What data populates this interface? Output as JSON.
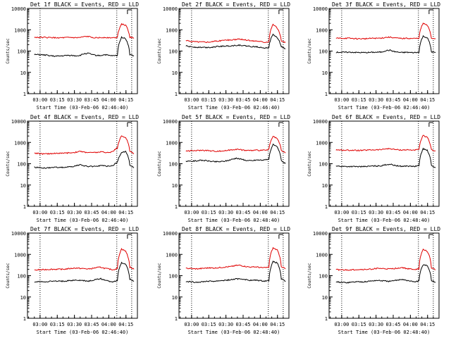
{
  "chart_data": [
    {
      "type": "line",
      "title": "Det 1f BLACK = Events, RED = LLD",
      "xlabel": "Start Time (03-Feb-06 02:46:40)",
      "ylabel": "Counts/sec",
      "yscale": "log",
      "ylim": [
        1,
        10000
      ],
      "x_ticks": [
        "03:00",
        "03:15",
        "03:30",
        "03:45",
        "04:00",
        "04:15"
      ],
      "y_ticks": [
        "1",
        "10",
        "100",
        "1000",
        "10000"
      ],
      "vlines": [
        "03:00",
        "04:07",
        "04:20"
      ],
      "series": [
        {
          "name": "Events",
          "color": "#000000",
          "values": [
            68,
            68,
            66,
            64,
            60,
            57,
            58,
            60,
            63,
            62,
            60,
            62,
            75,
            78,
            68,
            62,
            62,
            68,
            62,
            60,
            62,
            450,
            380,
            68,
            60
          ]
        },
        {
          "name": "LLD",
          "color": "#e00000",
          "values": [
            440,
            440,
            440,
            430,
            430,
            420,
            420,
            420,
            430,
            430,
            420,
            430,
            470,
            480,
            440,
            420,
            420,
            440,
            420,
            420,
            440,
            1900,
            1600,
            450,
            410
          ]
        }
      ]
    },
    {
      "type": "line",
      "title": "Det 2f BLACK = Events, RED = LLD",
      "xlabel": "Start Time (03-Feb-06 02:46:40)",
      "ylabel": "Counts/sec",
      "yscale": "log",
      "ylim": [
        1,
        10000
      ],
      "x_ticks": [
        "03:00",
        "03:15",
        "03:30",
        "03:45",
        "04:00",
        "04:15"
      ],
      "y_ticks": [
        "1",
        "10",
        "100",
        "1000",
        "10000"
      ],
      "vlines": [
        "03:00",
        "04:07",
        "04:20"
      ],
      "series": [
        {
          "name": "Events",
          "color": "#000000",
          "values": [
            175,
            160,
            155,
            150,
            150,
            148,
            150,
            158,
            165,
            170,
            172,
            175,
            185,
            190,
            178,
            170,
            160,
            160,
            150,
            140,
            150,
            600,
            420,
            160,
            130
          ]
        },
        {
          "name": "LLD",
          "color": "#e00000",
          "values": [
            310,
            290,
            280,
            270,
            270,
            265,
            270,
            290,
            300,
            320,
            330,
            330,
            350,
            360,
            340,
            320,
            300,
            300,
            280,
            260,
            280,
            1800,
            1200,
            300,
            250
          ]
        }
      ]
    },
    {
      "type": "line",
      "title": "Det 3f BLACK = Events, RED = LLD",
      "xlabel": "Start Time (03-Feb-06 02:46:40)",
      "ylabel": "Counts/sec",
      "yscale": "log",
      "ylim": [
        1,
        10000
      ],
      "x_ticks": [
        "03:00",
        "03:15",
        "03:30",
        "03:45",
        "04:00",
        "04:15"
      ],
      "y_ticks": [
        "1",
        "10",
        "100",
        "1000",
        "10000"
      ],
      "vlines": [
        "03:00",
        "04:07",
        "04:20"
      ],
      "series": [
        {
          "name": "Events",
          "color": "#000000",
          "values": [
            88,
            88,
            88,
            88,
            88,
            86,
            85,
            85,
            86,
            88,
            88,
            90,
            105,
            110,
            95,
            88,
            85,
            88,
            85,
            85,
            88,
            500,
            420,
            92,
            85
          ]
        },
        {
          "name": "LLD",
          "color": "#e00000",
          "values": [
            400,
            400,
            400,
            400,
            390,
            380,
            380,
            380,
            390,
            400,
            400,
            410,
            440,
            450,
            420,
            400,
            390,
            400,
            390,
            390,
            400,
            2000,
            1600,
            400,
            380
          ]
        }
      ]
    },
    {
      "type": "line",
      "title": "Det 4f BLACK = Events, RED = LLD",
      "xlabel": "Start Time (03-Feb-06 02:46:40)",
      "ylabel": "Counts/sec",
      "yscale": "log",
      "ylim": [
        1,
        10000
      ],
      "x_ticks": [
        "03:00",
        "03:15",
        "03:30",
        "03:45",
        "04:00",
        "04:15"
      ],
      "y_ticks": [
        "1",
        "10",
        "100",
        "1000",
        "10000"
      ],
      "vlines": [
        "03:00",
        "04:07",
        "04:20"
      ],
      "series": [
        {
          "name": "Events",
          "color": "#000000",
          "values": [
            70,
            65,
            63,
            63,
            65,
            68,
            68,
            68,
            70,
            72,
            80,
            88,
            80,
            75,
            75,
            78,
            82,
            78,
            75,
            85,
            120,
            320,
            380,
            85,
            65
          ]
        },
        {
          "name": "LLD",
          "color": "#e00000",
          "values": [
            320,
            300,
            290,
            290,
            300,
            310,
            310,
            310,
            320,
            330,
            350,
            380,
            350,
            340,
            330,
            340,
            360,
            340,
            330,
            400,
            550,
            2000,
            1700,
            380,
            300
          ]
        }
      ]
    },
    {
      "type": "line",
      "title": "Det 5f BLACK = Events, RED = LLD",
      "xlabel": "Start Time (03-Feb-06 02:48:40)",
      "ylabel": "Counts/sec",
      "yscale": "log",
      "ylim": [
        1,
        10000
      ],
      "x_ticks": [
        "03:00",
        "03:15",
        "03:30",
        "03:45",
        "04:00",
        "04:15"
      ],
      "y_ticks": [
        "1",
        "10",
        "100",
        "1000",
        "10000"
      ],
      "vlines": [
        "03:00",
        "04:07",
        "04:20"
      ],
      "series": [
        {
          "name": "Events",
          "color": "#000000",
          "values": [
            130,
            130,
            135,
            140,
            145,
            140,
            130,
            125,
            125,
            130,
            140,
            160,
            180,
            170,
            150,
            140,
            140,
            150,
            150,
            150,
            160,
            800,
            600,
            140,
            100
          ]
        },
        {
          "name": "LLD",
          "color": "#e00000",
          "values": [
            400,
            400,
            410,
            420,
            430,
            420,
            400,
            390,
            390,
            400,
            420,
            450,
            480,
            460,
            430,
            420,
            420,
            430,
            430,
            430,
            460,
            1900,
            1500,
            410,
            320
          ]
        }
      ]
    },
    {
      "type": "line",
      "title": "Det 6f BLACK = Events, RED = LLD",
      "xlabel": "Start Time (03-Feb-06 02:48:40)",
      "ylabel": "Counts/sec",
      "yscale": "log",
      "ylim": [
        1,
        10000
      ],
      "x_ticks": [
        "03:00",
        "03:15",
        "03:30",
        "03:45",
        "04:00",
        "04:15"
      ],
      "y_ticks": [
        "1",
        "10",
        "100",
        "1000",
        "10000"
      ],
      "vlines": [
        "03:00",
        "04:07",
        "04:20"
      ],
      "series": [
        {
          "name": "Events",
          "color": "#000000",
          "values": [
            78,
            76,
            75,
            74,
            74,
            73,
            73,
            74,
            76,
            78,
            78,
            80,
            90,
            95,
            85,
            78,
            76,
            78,
            76,
            75,
            80,
            500,
            420,
            80,
            65
          ]
        },
        {
          "name": "LLD",
          "color": "#e00000",
          "values": [
            450,
            440,
            430,
            430,
            430,
            420,
            420,
            430,
            440,
            450,
            450,
            460,
            500,
            510,
            470,
            450,
            440,
            450,
            440,
            440,
            460,
            2100,
            1700,
            450,
            400
          ]
        }
      ]
    },
    {
      "type": "line",
      "title": "Det 7f BLACK = Events, RED = LLD",
      "xlabel": "Start Time (03-Feb-06 02:46:40)",
      "ylabel": "Counts/sec",
      "yscale": "log",
      "ylim": [
        1,
        10000
      ],
      "x_ticks": [
        "03:00",
        "03:15",
        "03:30",
        "03:45",
        "04:00",
        "04:15"
      ],
      "y_ticks": [
        "1",
        "10",
        "100",
        "1000",
        "10000"
      ],
      "vlines": [
        "03:00",
        "04:07",
        "04:20"
      ],
      "series": [
        {
          "name": "Events",
          "color": "#000000",
          "values": [
            50,
            52,
            52,
            53,
            55,
            55,
            55,
            55,
            57,
            60,
            62,
            60,
            58,
            55,
            60,
            68,
            72,
            62,
            55,
            52,
            60,
            400,
            350,
            70,
            55
          ]
        },
        {
          "name": "LLD",
          "color": "#e00000",
          "values": [
            180,
            190,
            190,
            195,
            200,
            200,
            200,
            200,
            210,
            220,
            230,
            220,
            215,
            205,
            220,
            240,
            250,
            220,
            205,
            190,
            220,
            1800,
            1400,
            250,
            200
          ]
        }
      ]
    },
    {
      "type": "line",
      "title": "Det 8f BLACK = Events, RED = LLD",
      "xlabel": "Start Time (03-Feb-06 02:48:40)",
      "ylabel": "Counts/sec",
      "yscale": "log",
      "ylim": [
        1,
        10000
      ],
      "x_ticks": [
        "03:00",
        "03:15",
        "03:30",
        "03:45",
        "04:00",
        "04:15"
      ],
      "y_ticks": [
        "1",
        "10",
        "100",
        "1000",
        "10000"
      ],
      "vlines": [
        "03:00",
        "04:07",
        "04:20"
      ],
      "series": [
        {
          "name": "Events",
          "color": "#000000",
          "values": [
            52,
            52,
            50,
            50,
            52,
            55,
            55,
            55,
            58,
            60,
            62,
            65,
            70,
            72,
            68,
            62,
            60,
            62,
            58,
            56,
            60,
            450,
            400,
            70,
            52
          ]
        },
        {
          "name": "LLD",
          "color": "#e00000",
          "values": [
            220,
            220,
            210,
            210,
            220,
            230,
            230,
            230,
            240,
            250,
            260,
            270,
            300,
            310,
            280,
            260,
            250,
            260,
            240,
            235,
            250,
            2000,
            1600,
            270,
            210
          ]
        }
      ]
    },
    {
      "type": "line",
      "title": "Det 9f BLACK = Events, RED = LLD",
      "xlabel": "Start Time (03-Feb-06 02:48:40)",
      "ylabel": "Counts/sec",
      "yscale": "log",
      "ylim": [
        1,
        10000
      ],
      "x_ticks": [
        "03:00",
        "03:15",
        "03:30",
        "03:45",
        "04:00",
        "04:15"
      ],
      "y_ticks": [
        "1",
        "10",
        "100",
        "1000",
        "10000"
      ],
      "vlines": [
        "03:00",
        "04:07",
        "04:20"
      ],
      "series": [
        {
          "name": "Events",
          "color": "#000000",
          "values": [
            50,
            50,
            48,
            48,
            50,
            52,
            52,
            52,
            55,
            58,
            60,
            58,
            56,
            54,
            58,
            64,
            68,
            60,
            55,
            52,
            56,
            330,
            300,
            60,
            48
          ]
        },
        {
          "name": "LLD",
          "color": "#e00000",
          "values": [
            190,
            190,
            185,
            185,
            190,
            195,
            195,
            195,
            200,
            210,
            220,
            215,
            210,
            205,
            215,
            230,
            240,
            215,
            205,
            195,
            210,
            1700,
            1400,
            230,
            190
          ]
        }
      ]
    }
  ]
}
